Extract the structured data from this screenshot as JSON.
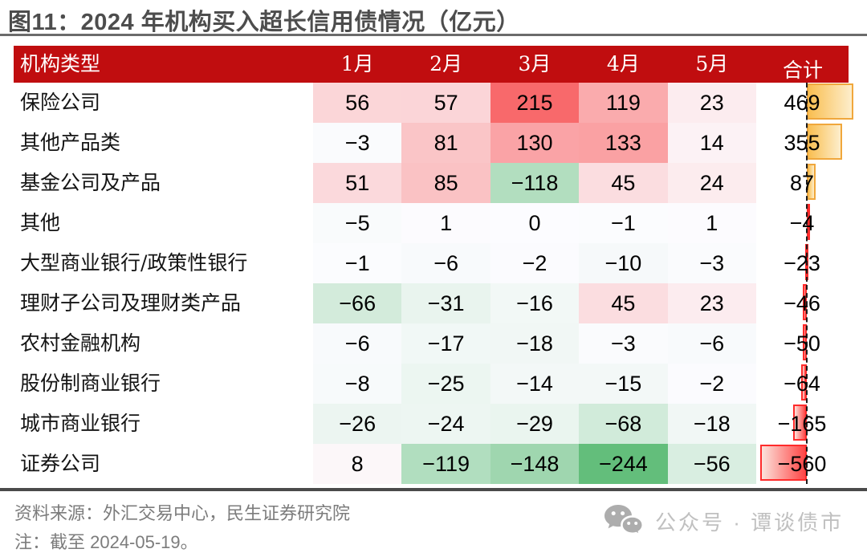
{
  "colors": {
    "header_bg": "#c00d0f",
    "header_text": "#ffffff",
    "title_text": "#4d4d4d",
    "title_rule": "#6b6b6b",
    "bottom_rule": "#4a4a4a",
    "heat_max_red": "#F8696B",
    "heat_mid_white": "#FCFCFF",
    "heat_min_green": "#63BE7B",
    "bar_positive": "#f0a73c",
    "bar_negative": "#ff2b2b",
    "footer_text": "#7c7c7c",
    "watermark_text": "#c0c0c0"
  },
  "footer": {
    "source": "资料来源：外汇交易中心，民生证券研究院",
    "note": "注：截至 2024-05-19。"
  },
  "watermark": {
    "icon": "wechat-icon",
    "text": "公众号 · 谭谈债市"
  },
  "chart_data": {
    "type": "heatmap",
    "title": "图11：2024 年机构买入超长信用债情况（亿元）",
    "unit": "亿元",
    "label_header": "机构类型",
    "categories": [
      "1月",
      "2月",
      "3月",
      "4月",
      "5月"
    ],
    "total_header": "合计",
    "rows": [
      {
        "label": "保险公司",
        "values": [
          56,
          57,
          215,
          119,
          23
        ],
        "total": 469
      },
      {
        "label": "其他产品类",
        "values": [
          -3,
          81,
          130,
          133,
          14
        ],
        "total": 355
      },
      {
        "label": "基金公司及产品",
        "values": [
          51,
          85,
          -118,
          45,
          24
        ],
        "total": 87
      },
      {
        "label": "其他",
        "values": [
          -5,
          1,
          0,
          -1,
          1
        ],
        "total": -4
      },
      {
        "label": "大型商业银行/政策性银行",
        "values": [
          -1,
          -6,
          -2,
          -10,
          -3
        ],
        "total": -23
      },
      {
        "label": "理财子公司及理财类产品",
        "values": [
          -66,
          -31,
          -16,
          45,
          23
        ],
        "total": -46
      },
      {
        "label": "农村金融机构",
        "values": [
          -6,
          -17,
          -18,
          -3,
          -6
        ],
        "total": -50
      },
      {
        "label": "股份制商业银行",
        "values": [
          -8,
          -25,
          -14,
          -15,
          -2
        ],
        "total": -64
      },
      {
        "label": "城市商业银行",
        "values": [
          -26,
          -24,
          -29,
          -68,
          -18
        ],
        "total": -165
      },
      {
        "label": "证券公司",
        "values": [
          8,
          -119,
          -148,
          -244,
          -56
        ],
        "total": -560
      }
    ],
    "heat_scale": {
      "domain": [
        -244,
        0,
        215
      ],
      "colors": [
        "#63BE7B",
        "#FCFCFF",
        "#F8696B"
      ]
    },
    "total_bar_axis": "dashed zero line, positive bars gold to the right, negative bars red to the left",
    "legend": "none",
    "grid": "off"
  }
}
